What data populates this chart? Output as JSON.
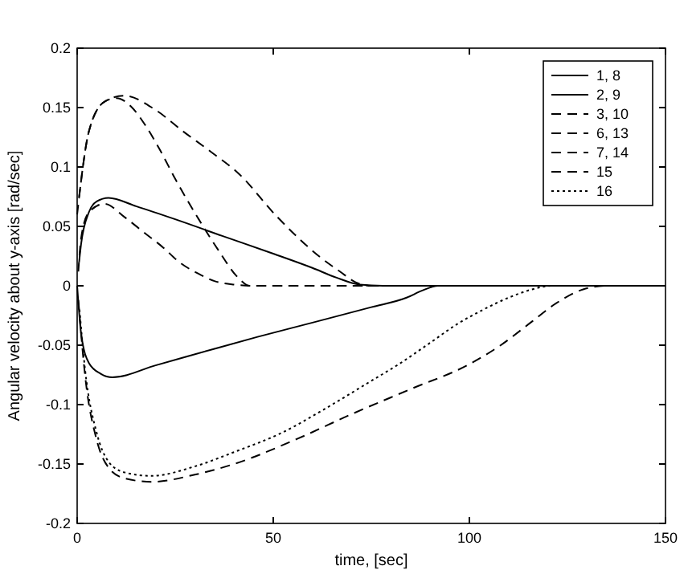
{
  "chart_data": {
    "type": "line",
    "xlabel": "time, [sec]",
    "ylabel": "Angular velocity about y-axis [rad/sec]",
    "xlim": [
      0,
      150
    ],
    "ylim": [
      -0.2,
      0.2
    ],
    "xticks": [
      0,
      50,
      100,
      150
    ],
    "yticks": [
      -0.2,
      -0.15,
      -0.1,
      -0.05,
      0,
      0.05,
      0.1,
      0.15,
      0.2
    ],
    "grid": false,
    "legend": "top right",
    "marker": "none",
    "series": [
      {
        "name": "1, 8",
        "color": "#000000",
        "line_style": "solid",
        "x": [
          0,
          1,
          3,
          6,
          9,
          20,
          35,
          46,
          60,
          75,
          84,
          88,
          92,
          150
        ],
        "values": [
          0,
          -0.04,
          -0.065,
          -0.074,
          -0.077,
          -0.067,
          -0.053,
          -0.043,
          -0.031,
          -0.018,
          -0.01,
          -0.004,
          0,
          0
        ]
      },
      {
        "name": "2, 9",
        "color": "#000000",
        "line_style": "solid",
        "x": [
          0.5,
          1,
          3,
          5,
          8,
          15,
          25,
          37,
          50,
          60,
          66,
          72,
          78,
          150
        ],
        "values": [
          0.02,
          0.035,
          0.062,
          0.071,
          0.074,
          0.067,
          0.056,
          0.042,
          0.027,
          0.015,
          0.007,
          0.001,
          0,
          0
        ]
      },
      {
        "name": "3, 10",
        "color": "#000000",
        "line_style": "dashed",
        "x": [
          0,
          3,
          7,
          12,
          20,
          27,
          34,
          41,
          51,
          62,
          67,
          71,
          75,
          150
        ],
        "values": [
          0.06,
          0.13,
          0.155,
          0.16,
          0.148,
          0.13,
          0.113,
          0.095,
          0.058,
          0.024,
          0.012,
          0.003,
          0,
          0
        ]
      },
      {
        "name": "6, 13",
        "color": "#000000",
        "line_style": "dashed",
        "x": [
          0.5,
          3,
          7,
          10,
          14,
          17,
          21,
          25,
          31,
          36,
          41,
          44,
          150
        ],
        "values": [
          0.075,
          0.13,
          0.155,
          0.158,
          0.15,
          0.137,
          0.115,
          0.09,
          0.056,
          0.03,
          0.007,
          0,
          0
        ]
      },
      {
        "name": "7, 14",
        "color": "#000000",
        "line_style": "dashed",
        "x": [
          0.3,
          1,
          3,
          7,
          12,
          17,
          22,
          26,
          31,
          35,
          40,
          45,
          150
        ],
        "values": [
          0.012,
          0.04,
          0.062,
          0.069,
          0.058,
          0.045,
          0.032,
          0.02,
          0.01,
          0.004,
          0.001,
          0,
          0
        ]
      },
      {
        "name": "15",
        "color": "#000000",
        "line_style": "dashed",
        "x": [
          0.3,
          2,
          5,
          8,
          12,
          19,
          30,
          40,
          56,
          70,
          85,
          100,
          108,
          116,
          122,
          129,
          135,
          150
        ],
        "values": [
          -0.012,
          -0.075,
          -0.13,
          -0.153,
          -0.162,
          -0.165,
          -0.159,
          -0.15,
          -0.129,
          -0.108,
          -0.087,
          -0.066,
          -0.05,
          -0.03,
          -0.015,
          -0.003,
          0,
          0
        ]
      },
      {
        "name": "16",
        "color": "#000000",
        "line_style": "dotted",
        "x": [
          0.6,
          2,
          5,
          8,
          12,
          19,
          30,
          40,
          52,
          65,
          75,
          82,
          90,
          97,
          103,
          110,
          116,
          121,
          150
        ],
        "values": [
          -0.02,
          -0.07,
          -0.124,
          -0.148,
          -0.157,
          -0.16,
          -0.152,
          -0.14,
          -0.124,
          -0.1,
          -0.08,
          -0.066,
          -0.048,
          -0.032,
          -0.021,
          -0.01,
          -0.003,
          0,
          0
        ]
      }
    ]
  }
}
